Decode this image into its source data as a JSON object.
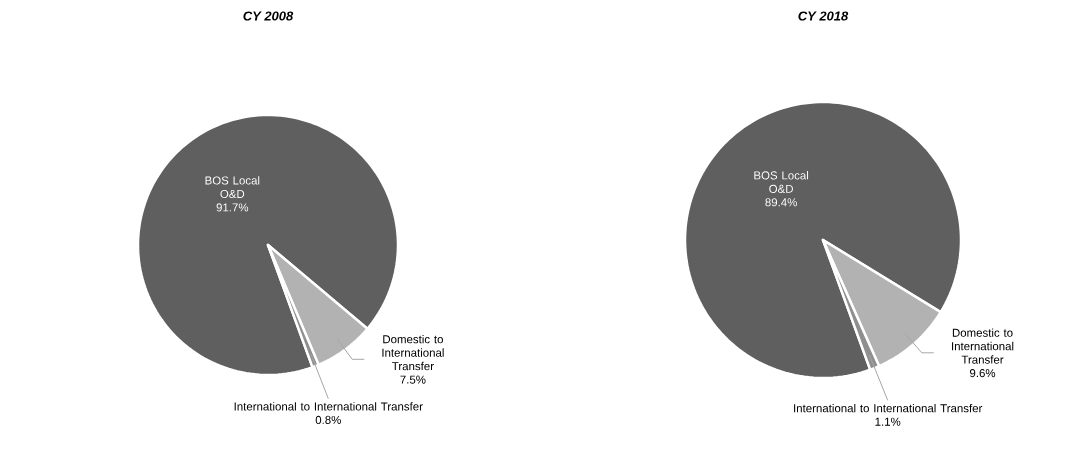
{
  "chart_data": [
    {
      "type": "pie",
      "title": "CY 2008",
      "categories": [
        "BOS Local O&D",
        "Domestic to International Transfer",
        "International to International Transfer"
      ],
      "values": [
        91.7,
        7.5,
        0.8
      ],
      "colors": [
        "#5f5f5f",
        "#b2b2b2",
        "#8f8f8f"
      ],
      "value_labels": [
        "91.7%",
        "7.5%",
        "0.8%"
      ]
    },
    {
      "type": "pie",
      "title": "CY 2018",
      "categories": [
        "BOS Local O&D",
        "Domestic to International Transfer",
        "International to International Transfer"
      ],
      "values": [
        89.4,
        9.6,
        1.1
      ],
      "colors": [
        "#5f5f5f",
        "#b2b2b2",
        "#8f8f8f"
      ],
      "value_labels": [
        "89.4%",
        "9.6%",
        "1.1%"
      ]
    }
  ]
}
